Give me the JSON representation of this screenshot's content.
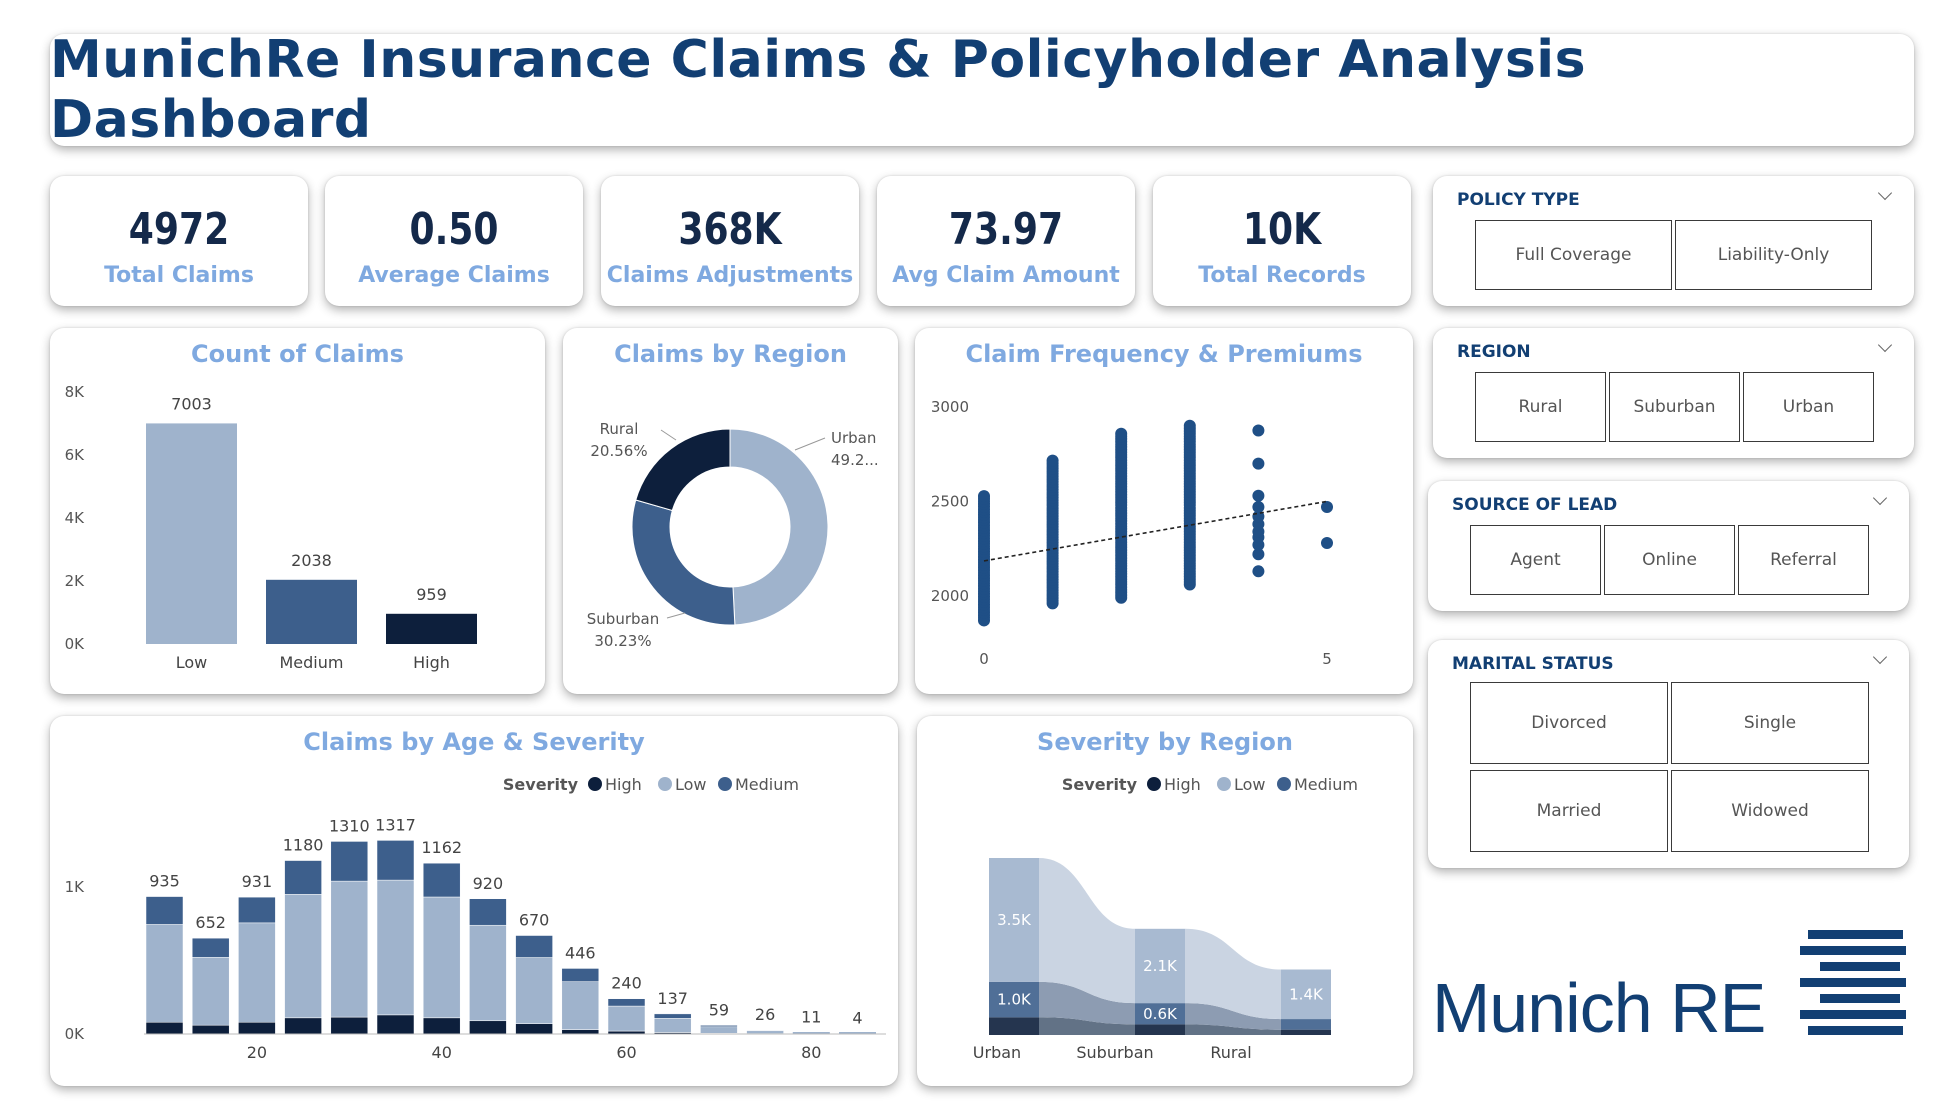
{
  "title": "MunichRe Insurance Claims & Policyholder Analysis Dashboard",
  "kpis": [
    {
      "value": "4972",
      "label": "Total Claims"
    },
    {
      "value": "0.50",
      "label": "Average Claims"
    },
    {
      "value": "368K",
      "label": "Claims Adjustments"
    },
    {
      "value": "73.97",
      "label": "Avg Claim Amount"
    },
    {
      "value": "10K",
      "label": "Total Records"
    }
  ],
  "slicers": {
    "policy_type": {
      "title": "POLICY TYPE",
      "options": [
        "Full Coverage",
        "Liability-Only"
      ]
    },
    "region": {
      "title": "REGION",
      "options": [
        "Rural",
        "Suburban",
        "Urban"
      ]
    },
    "source_of_lead": {
      "title": "SOURCE OF LEAD",
      "options": [
        "Agent",
        "Online",
        "Referral"
      ]
    },
    "marital_status": {
      "title": "MARITAL STATUS",
      "options": [
        "Divorced",
        "Single",
        "Married",
        "Widowed"
      ]
    }
  },
  "logo": {
    "text": "Munich RE"
  },
  "colors": {
    "high": "#0d1f3c",
    "medium": "#3d5f8c",
    "low": "#9fb3cc",
    "accent": "#7fa9e0"
  },
  "chart_data": [
    {
      "id": "count_of_claims",
      "type": "bar",
      "title": "Count of Claims",
      "categories": [
        "Low",
        "Medium",
        "High"
      ],
      "values": [
        7003,
        2038,
        959
      ],
      "value_labels": [
        "7003",
        "2038",
        "959"
      ],
      "yticks": [
        "0K",
        "2K",
        "4K",
        "6K",
        "8K"
      ],
      "ylim": [
        0,
        8000
      ]
    },
    {
      "id": "claims_by_region",
      "type": "pie",
      "title": "Claims by Region",
      "slices": [
        {
          "name": "Urban",
          "pct": 49.21,
          "label": "Urban",
          "pct_label": "49.2..."
        },
        {
          "name": "Suburban",
          "pct": 30.23,
          "label": "Suburban",
          "pct_label": "30.23%"
        },
        {
          "name": "Rural",
          "pct": 20.56,
          "label": "Rural",
          "pct_label": "20.56%"
        }
      ]
    },
    {
      "id": "claim_frequency_premiums",
      "type": "scatter",
      "title": "Claim Frequency & Premiums",
      "xticks": [
        "0",
        "5"
      ],
      "yticks": [
        "2000",
        "2500",
        "3000"
      ],
      "xlim": [
        0,
        5
      ],
      "ylim": [
        1830,
        3100
      ],
      "columns": [
        {
          "x": 0,
          "ymin": 1870,
          "ymax": 2530,
          "dense": true
        },
        {
          "x": 1,
          "ymin": 1960,
          "ymax": 2720,
          "dense": true
        },
        {
          "x": 2,
          "ymin": 1990,
          "ymax": 2860,
          "dense": true
        },
        {
          "x": 3,
          "ymin": 2060,
          "ymax": 2900,
          "dense": true
        },
        {
          "x": 4,
          "ymin": 2130,
          "ymax": 2875,
          "dense": false,
          "points": [
            2130,
            2220,
            2270,
            2310,
            2340,
            2380,
            2420,
            2470,
            2530,
            2700,
            2875
          ]
        },
        {
          "x": 5,
          "ymin": 2280,
          "ymax": 2470,
          "dense": false,
          "points": [
            2280,
            2470
          ]
        }
      ],
      "trend": {
        "x": [
          0,
          5
        ],
        "y": [
          2185,
          2500
        ]
      }
    },
    {
      "id": "claims_by_age_severity",
      "type": "bar",
      "stacked": true,
      "title": "Claims by Age & Severity",
      "legend_title": "Severity",
      "legend": [
        "High",
        "Low",
        "Medium"
      ],
      "xticks": [
        "20",
        "40",
        "60",
        "80"
      ],
      "yticks": [
        "0K",
        "1K"
      ],
      "ylim": [
        0,
        1400
      ],
      "totals": [
        935,
        652,
        931,
        1180,
        1310,
        1317,
        1162,
        920,
        670,
        446,
        240,
        137,
        59,
        26,
        11,
        4
      ],
      "series": [
        {
          "name": "High",
          "values": [
            80,
            60,
            80,
            110,
            115,
            130,
            110,
            90,
            70,
            30,
            20,
            10,
            5,
            3,
            1,
            0
          ]
        },
        {
          "name": "Low",
          "values": [
            665,
            462,
            676,
            840,
            925,
            917,
            822,
            650,
            450,
            326,
            170,
            97,
            44,
            19,
            8,
            4
          ]
        },
        {
          "name": "Medium",
          "values": [
            190,
            130,
            175,
            230,
            270,
            270,
            230,
            180,
            150,
            90,
            50,
            30,
            10,
            4,
            2,
            0
          ]
        }
      ]
    },
    {
      "id": "severity_by_region",
      "type": "area",
      "title": "Severity by Region",
      "legend_title": "Severity",
      "legend": [
        "High",
        "Low",
        "Medium"
      ],
      "categories": [
        "Urban",
        "Suburban",
        "Rural"
      ],
      "ylim": [
        0,
        5000
      ],
      "series": [
        {
          "name": "High",
          "values": [
            500,
            300,
            150
          ]
        },
        {
          "name": "Medium",
          "values": [
            1000,
            600,
            300
          ]
        },
        {
          "name": "Low",
          "values": [
            3500,
            2100,
            1400
          ]
        }
      ],
      "labels": {
        "Low": [
          "3.5K",
          "2.1K",
          "1.4K"
        ],
        "Medium": [
          "1.0K",
          "0.6K",
          ""
        ]
      }
    }
  ]
}
